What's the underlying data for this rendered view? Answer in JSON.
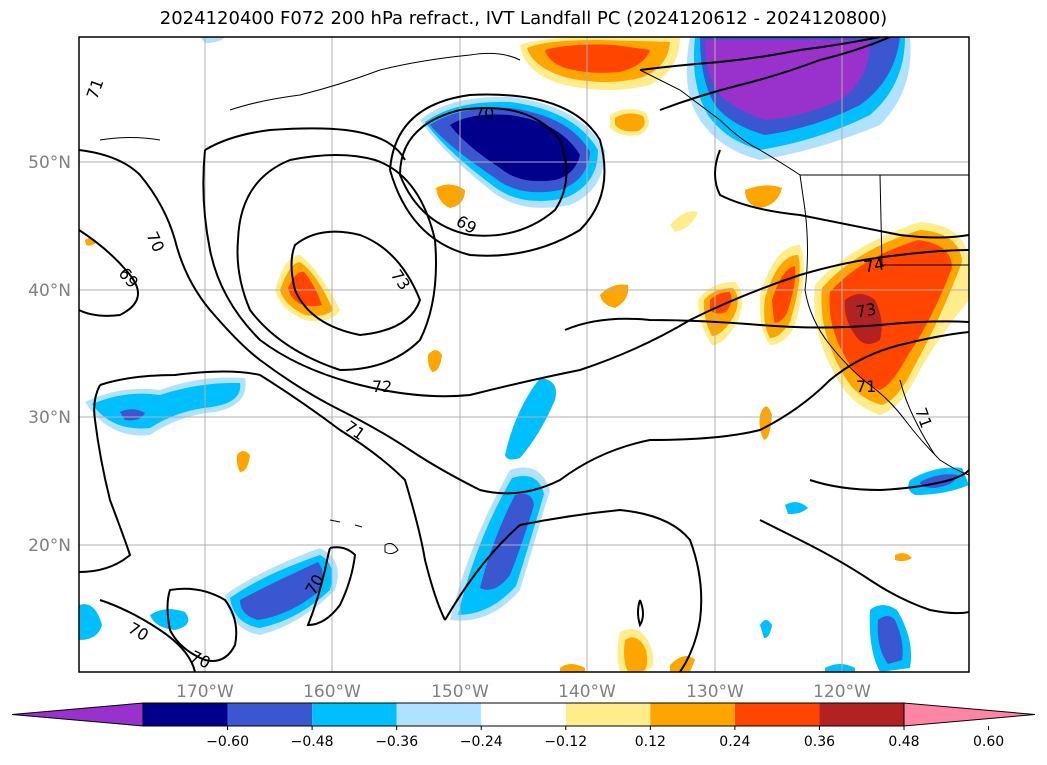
{
  "title": "2024120400 F072 200 hPa refract., IVT Landfall PC (2024120612 - 2024120800)",
  "lat_labels": [
    "50°N",
    "40°N",
    "30°N",
    "20°N"
  ],
  "lon_labels": [
    "170°W",
    "160°W",
    "150°W",
    "140°W",
    "130°W",
    "120°W"
  ],
  "contour_labels": [
    "71",
    "70",
    "69",
    "70",
    "69",
    "73",
    "72",
    "71",
    "74",
    "73",
    "71",
    "71",
    "70",
    "70",
    "70"
  ],
  "colorbar": {
    "ticks": [
      "−0.60",
      "−0.48",
      "−0.36",
      "−0.24",
      "−0.12",
      "0.12",
      "0.24",
      "0.36",
      "0.48",
      "0.60"
    ],
    "colors": [
      "#9932cc",
      "#00008b",
      "#3a56d0",
      "#00bfff",
      "#b0e2ff",
      "#ffffff",
      "#ffec8b",
      "#ffa500",
      "#ff4500",
      "#b22222",
      "#ff85a5"
    ]
  }
}
